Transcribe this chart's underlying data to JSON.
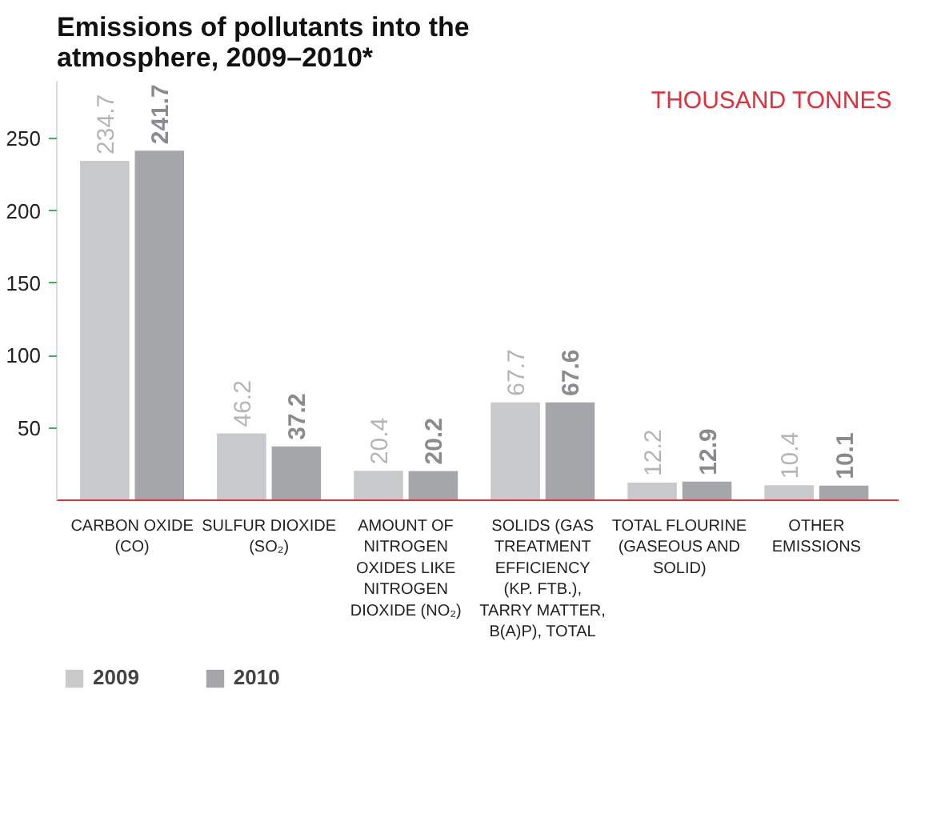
{
  "chart_data": {
    "type": "bar",
    "title": "Emissions of pollutants into the atmosphere, 2009–2010*",
    "subtitle": "THOUSAND TONNES",
    "categories": [
      "CARBON OXIDE (CO)",
      "SULFUR DIOXIDE (SO₂)",
      "AMOUNT OF NITROGEN OXIDES LIKE NITROGEN DIOXIDE (NO₂)",
      "SOLIDS (GAS TREATMENT EFFICIENCY (KP. FTB.), TARRY MATTER, B(A)P), TOTAL",
      "TOTAL FLOURINE (GASEOUS AND SOLID)",
      "OTHER EMISSIONS"
    ],
    "series": [
      {
        "name": "2009",
        "color": "#c8c9cb",
        "values": [
          234.7,
          46.2,
          20.4,
          67.7,
          12.2,
          10.4
        ]
      },
      {
        "name": "2010",
        "color": "#a5a6a9",
        "values": [
          241.7,
          37.2,
          20.2,
          67.6,
          12.9,
          10.1
        ]
      }
    ],
    "ylim": [
      0,
      290
    ],
    "yticks": [
      50,
      100,
      150,
      200,
      250
    ],
    "grid": false,
    "legend": "bottom left",
    "data_labels": true
  }
}
